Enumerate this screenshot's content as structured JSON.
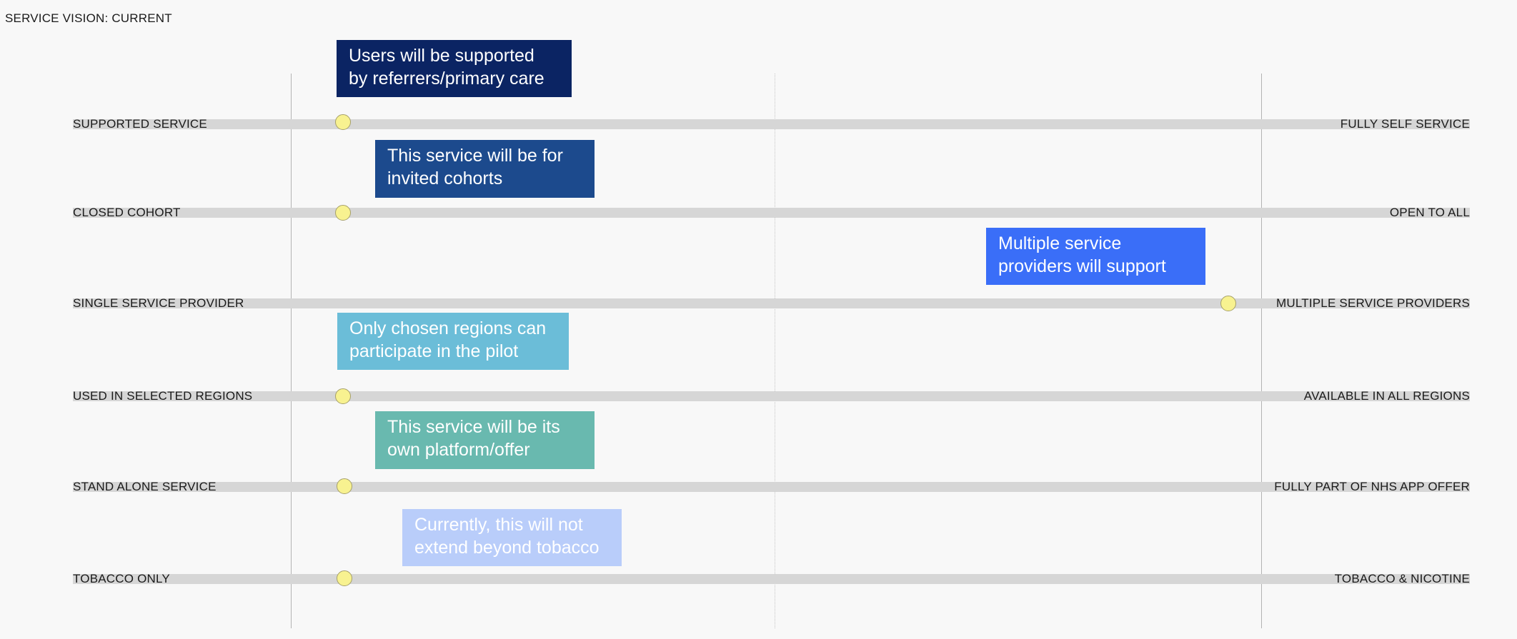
{
  "page": {
    "title": "SERVICE VISION: CURRENT"
  },
  "colors": {
    "background": "#f8f8f8",
    "track": "#d6d6d6",
    "marker": "#f8f290",
    "marker_border": "#a6a06a",
    "note_dark_navy": "#0b2463",
    "note_navy": "#1c4a8d",
    "note_blue": "#3a6ef8",
    "note_sky": "#6bbdd8",
    "note_teal": "#69b9af",
    "note_pale_blue": "#b9cdfa"
  },
  "rows": [
    {
      "id": "supported",
      "left_label": "SUPPORTED SERVICE",
      "right_label": "FULLY SELF SERVICE",
      "position": 0.13,
      "note_line1": "Users will be supported",
      "note_line2": "by referrers/primary care",
      "note_color": "#0b2463"
    },
    {
      "id": "cohort",
      "left_label": "CLOSED COHORT",
      "right_label": "OPEN TO ALL",
      "position": 0.13,
      "note_line1": "This service will be for",
      "note_line2": "invited cohorts",
      "note_color": "#1c4a8d"
    },
    {
      "id": "provider",
      "left_label": "SINGLE SERVICE PROVIDER",
      "right_label": "MULTIPLE SERVICE PROVIDERS",
      "position": 0.96,
      "note_line1": "Multiple service",
      "note_line2": "providers will support",
      "note_color": "#3a6ef8"
    },
    {
      "id": "regions",
      "left_label": "USED IN SELECTED REGIONS",
      "right_label": "AVAILABLE IN ALL REGIONS",
      "position": 0.13,
      "note_line1": "Only chosen regions can",
      "note_line2": "participate in the pilot",
      "note_color": "#6bbdd8"
    },
    {
      "id": "standalone",
      "left_label": "STAND ALONE SERVICE",
      "right_label": "FULLY PART OF NHS APP OFFER",
      "position": 0.13,
      "note_line1": "This service will be its",
      "note_line2": "own platform/offer",
      "note_color": "#69b9af"
    },
    {
      "id": "tobacco",
      "left_label": "TOBACCO ONLY",
      "right_label": "TOBACCO & NICOTINE",
      "position": 0.13,
      "note_line1": "Currently, this will not",
      "note_line2": "extend beyond tobacco",
      "note_color": "#b9cdfa"
    }
  ]
}
